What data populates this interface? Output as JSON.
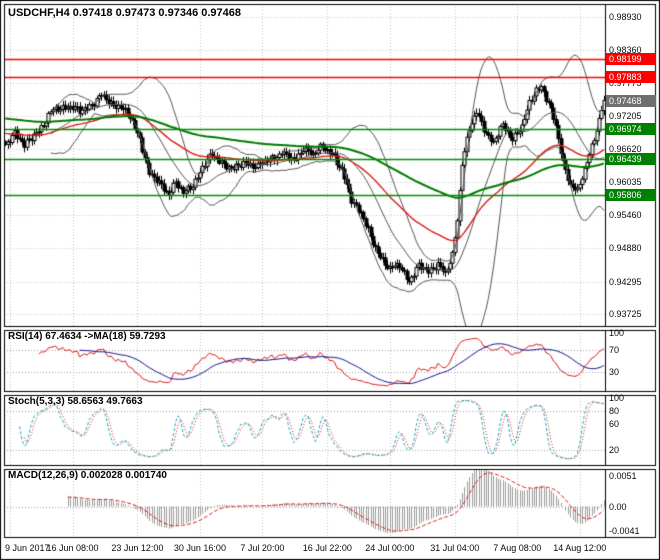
{
  "header": {
    "title": "USDCHF,H4 0.97418 0.97473 0.97346 0.97468"
  },
  "indicator_labels": {
    "rsi": "RSI(14) 67.4634  ->MA(18) 59.7293",
    "stoch": "Stoch(5,3,3) 58.6563 49.7663",
    "macd": "MACD(12,26,9) 0.002028 0.001740"
  },
  "axes": {
    "main_price_labels": [
      "0.98930",
      "0.98360",
      "0.97775",
      "0.97205",
      "0.96620",
      "0.96035",
      "0.95460",
      "0.94880",
      "0.94295",
      "0.93725"
    ],
    "rsi_labels": [
      "100",
      "70",
      "30"
    ],
    "stoch_labels": [
      "100",
      "80",
      "60",
      "20"
    ],
    "macd_labels": [
      "0.0051",
      "0.00",
      "-0.0041"
    ],
    "time_labels": [
      "9 Jun 2017",
      "16 Jun 08:00",
      "23 Jun 12:00",
      "30 Jun 16:00",
      "7 Jul 20:00",
      "16 Jul 22:00",
      "24 Jul 00:00",
      "31 Jul 04:00",
      "7 Aug 08:00",
      "14 Aug 12:00"
    ]
  },
  "price_tags": {
    "resistance": [
      "0.98199",
      "0.97883"
    ],
    "support": [
      "0.96974",
      "0.96439",
      "0.95806"
    ],
    "current": "0.97468"
  },
  "chart_data": {
    "type": "candlestick",
    "symbol": "USDCHF",
    "timeframe": "H4",
    "title": "USDCHF,H4",
    "ohlc_header": {
      "open": 0.97418,
      "high": 0.97473,
      "low": 0.97346,
      "close": 0.97468
    },
    "bars": 250,
    "price_range": [
      0.935,
      0.9916
    ],
    "grid_prices": [
      0.9893,
      0.9836,
      0.97775,
      0.97205,
      0.9662,
      0.96035,
      0.9546,
      0.9488,
      0.94295,
      0.93725
    ],
    "hlines": {
      "resistance": [
        0.98199,
        0.97883
      ],
      "support": [
        0.96974,
        0.96439,
        0.95806
      ],
      "current": 0.97468
    },
    "close_anchors": [
      [
        0,
        0.967
      ],
      [
        4,
        0.9692
      ],
      [
        8,
        0.9665
      ],
      [
        12,
        0.9688
      ],
      [
        16,
        0.9705
      ],
      [
        20,
        0.973
      ],
      [
        26,
        0.9738
      ],
      [
        31,
        0.9726
      ],
      [
        36,
        0.9742
      ],
      [
        40,
        0.9755
      ],
      [
        44,
        0.974
      ],
      [
        48,
        0.9738
      ],
      [
        52,
        0.9715
      ],
      [
        56,
        0.968
      ],
      [
        60,
        0.962
      ],
      [
        64,
        0.96
      ],
      [
        68,
        0.9585
      ],
      [
        71,
        0.9605
      ],
      [
        74,
        0.9582
      ],
      [
        78,
        0.96
      ],
      [
        82,
        0.963
      ],
      [
        86,
        0.965
      ],
      [
        90,
        0.964
      ],
      [
        95,
        0.9625
      ],
      [
        100,
        0.964
      ],
      [
        105,
        0.963
      ],
      [
        110,
        0.9645
      ],
      [
        115,
        0.9655
      ],
      [
        120,
        0.964
      ],
      [
        124,
        0.9665
      ],
      [
        128,
        0.965
      ],
      [
        132,
        0.9668
      ],
      [
        136,
        0.9655
      ],
      [
        140,
        0.962
      ],
      [
        144,
        0.9575
      ],
      [
        148,
        0.955
      ],
      [
        152,
        0.9505
      ],
      [
        156,
        0.9475
      ],
      [
        160,
        0.945
      ],
      [
        164,
        0.9458
      ],
      [
        168,
        0.9432
      ],
      [
        172,
        0.9455
      ],
      [
        176,
        0.9448
      ],
      [
        180,
        0.9462
      ],
      [
        183,
        0.944
      ],
      [
        186,
        0.9475
      ],
      [
        188,
        0.954
      ],
      [
        190,
        0.964
      ],
      [
        193,
        0.9695
      ],
      [
        196,
        0.9725
      ],
      [
        199,
        0.97
      ],
      [
        203,
        0.9672
      ],
      [
        207,
        0.9702
      ],
      [
        211,
        0.9682
      ],
      [
        215,
        0.97
      ],
      [
        218,
        0.974
      ],
      [
        221,
        0.9768
      ],
      [
        223,
        0.9772
      ],
      [
        226,
        0.974
      ],
      [
        229,
        0.97
      ],
      [
        232,
        0.964
      ],
      [
        235,
        0.96
      ],
      [
        238,
        0.9585
      ],
      [
        241,
        0.9625
      ],
      [
        244,
        0.967
      ],
      [
        247,
        0.971
      ],
      [
        249,
        0.9747
      ]
    ],
    "tick_bars": [
      2,
      28,
      55,
      81,
      107,
      134,
      160,
      187,
      213,
      239
    ],
    "indicators": {
      "bollinger": {
        "period": 20,
        "deviation": 2
      },
      "ma_fast_red": {
        "type": "ema",
        "period": 55,
        "seed": 0.969
      },
      "ma_slow_green": {
        "type": "ema",
        "period": 150,
        "seed": 0.9716
      },
      "rsi": {
        "period": 14,
        "signal_ma": 18,
        "levels": [
          30,
          70
        ],
        "range": [
          0,
          100
        ],
        "last": 67.4634,
        "ma_last": 59.7293
      },
      "stoch": {
        "k": 5,
        "d": 3,
        "slowing": 3,
        "levels": [
          20,
          80
        ],
        "range": [
          0,
          100
        ],
        "last": 58.6563,
        "signal_last": 49.7663
      },
      "macd": {
        "fast": 12,
        "slow": 26,
        "signal": 9,
        "range": [
          -0.0052,
          0.0062
        ],
        "last": 0.002028,
        "signal_last": 0.00174
      }
    },
    "colors": {
      "bg": "#ffffff",
      "grid": "#c8c8c8",
      "frame": "#000000",
      "candle_up": "#ffffff",
      "candle_down": "#000000",
      "candle_line": "#000000",
      "bollinger": "#555555",
      "ma_red": "#d91e18",
      "ma_green": "#007a00",
      "res_line": "#ff0000",
      "sup_line": "#009000",
      "level_dotted": "#a8a8a8",
      "rsi_line": "#d91e18",
      "rsi_ma": "#14148c",
      "stoch_main": "#1fa6c0",
      "stoch_signal": "#d91e18",
      "macd_hist": "#9c9c9c",
      "macd_signal": "#d91e18",
      "tag_red_bg": "#ff0000",
      "tag_green_bg": "#008000",
      "tag_current_bg": "#6e6e6e",
      "axis_text": "#0a0a0a"
    }
  }
}
